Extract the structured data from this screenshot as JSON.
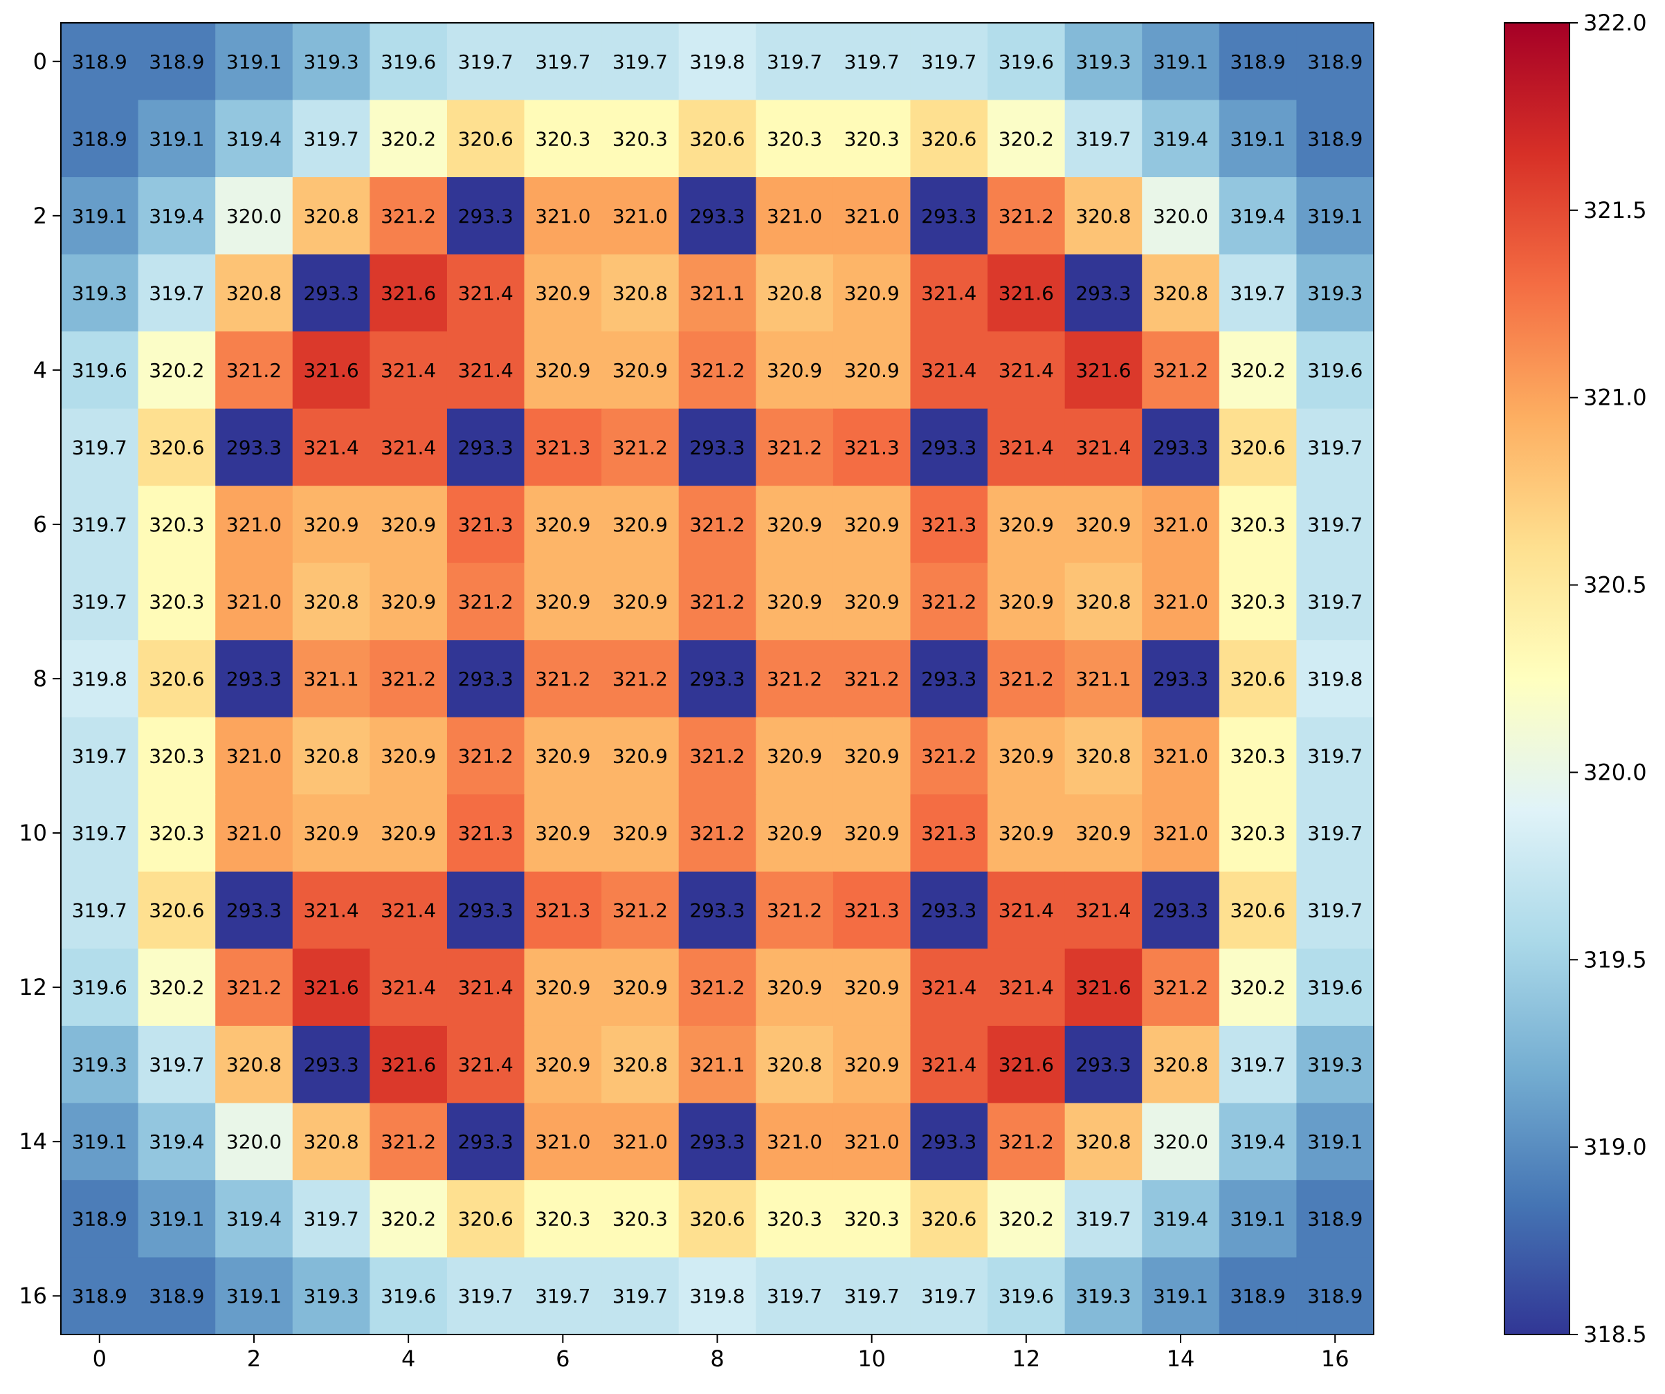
{
  "chart_data": {
    "type": "heatmap",
    "title": "",
    "xlabel": "",
    "ylabel": "",
    "x_ticks": [
      "0",
      "2",
      "4",
      "6",
      "8",
      "10",
      "12",
      "14",
      "16"
    ],
    "y_ticks": [
      "0",
      "2",
      "4",
      "6",
      "8",
      "10",
      "12",
      "14",
      "16"
    ],
    "colormap": "RdYlBu_r",
    "vmin": 318.5,
    "vmax": 322.0,
    "colorbar_ticks": [
      "322.0",
      "321.5",
      "321.0",
      "320.5",
      "320.0",
      "319.5",
      "319.0",
      "318.5"
    ],
    "matrix": [
      [
        "318.9",
        "318.9",
        "319.1",
        "319.3",
        "319.6",
        "319.7",
        "319.7",
        "319.7",
        "319.8",
        "319.7",
        "319.7",
        "319.7",
        "319.6",
        "319.3",
        "319.1",
        "318.9",
        "318.9"
      ],
      [
        "318.9",
        "319.1",
        "319.4",
        "319.7",
        "320.2",
        "320.6",
        "320.3",
        "320.3",
        "320.6",
        "320.3",
        "320.3",
        "320.6",
        "320.2",
        "319.7",
        "319.4",
        "319.1",
        "318.9"
      ],
      [
        "319.1",
        "319.4",
        "320.0",
        "320.8",
        "321.2",
        "293.3",
        "321.0",
        "321.0",
        "293.3",
        "321.0",
        "321.0",
        "293.3",
        "321.2",
        "320.8",
        "320.0",
        "319.4",
        "319.1"
      ],
      [
        "319.3",
        "319.7",
        "320.8",
        "293.3",
        "321.6",
        "321.4",
        "320.9",
        "320.8",
        "321.1",
        "320.8",
        "320.9",
        "321.4",
        "321.6",
        "293.3",
        "320.8",
        "319.7",
        "319.3"
      ],
      [
        "319.6",
        "320.2",
        "321.2",
        "321.6",
        "321.4",
        "321.4",
        "320.9",
        "320.9",
        "321.2",
        "320.9",
        "320.9",
        "321.4",
        "321.4",
        "321.6",
        "321.2",
        "320.2",
        "319.6"
      ],
      [
        "319.7",
        "320.6",
        "293.3",
        "321.4",
        "321.4",
        "293.3",
        "321.3",
        "321.2",
        "293.3",
        "321.2",
        "321.3",
        "293.3",
        "321.4",
        "321.4",
        "293.3",
        "320.6",
        "319.7"
      ],
      [
        "319.7",
        "320.3",
        "321.0",
        "320.9",
        "320.9",
        "321.3",
        "320.9",
        "320.9",
        "321.2",
        "320.9",
        "320.9",
        "321.3",
        "320.9",
        "320.9",
        "321.0",
        "320.3",
        "319.7"
      ],
      [
        "319.7",
        "320.3",
        "321.0",
        "320.8",
        "320.9",
        "321.2",
        "320.9",
        "320.9",
        "321.2",
        "320.9",
        "320.9",
        "321.2",
        "320.9",
        "320.8",
        "321.0",
        "320.3",
        "319.7"
      ],
      [
        "319.8",
        "320.6",
        "293.3",
        "321.1",
        "321.2",
        "293.3",
        "321.2",
        "321.2",
        "293.3",
        "321.2",
        "321.2",
        "293.3",
        "321.2",
        "321.1",
        "293.3",
        "320.6",
        "319.8"
      ],
      [
        "319.7",
        "320.3",
        "321.0",
        "320.8",
        "320.9",
        "321.2",
        "320.9",
        "320.9",
        "321.2",
        "320.9",
        "320.9",
        "321.2",
        "320.9",
        "320.8",
        "321.0",
        "320.3",
        "319.7"
      ],
      [
        "319.7",
        "320.3",
        "321.0",
        "320.9",
        "320.9",
        "321.3",
        "320.9",
        "320.9",
        "321.2",
        "320.9",
        "320.9",
        "321.3",
        "320.9",
        "320.9",
        "321.0",
        "320.3",
        "319.7"
      ],
      [
        "319.7",
        "320.6",
        "293.3",
        "321.4",
        "321.4",
        "293.3",
        "321.3",
        "321.2",
        "293.3",
        "321.2",
        "321.3",
        "293.3",
        "321.4",
        "321.4",
        "293.3",
        "320.6",
        "319.7"
      ],
      [
        "319.6",
        "320.2",
        "321.2",
        "321.6",
        "321.4",
        "321.4",
        "320.9",
        "320.9",
        "321.2",
        "320.9",
        "320.9",
        "321.4",
        "321.4",
        "321.6",
        "321.2",
        "320.2",
        "319.6"
      ],
      [
        "319.3",
        "319.7",
        "320.8",
        "293.3",
        "321.6",
        "321.4",
        "320.9",
        "320.8",
        "321.1",
        "320.8",
        "320.9",
        "321.4",
        "321.6",
        "293.3",
        "320.8",
        "319.7",
        "319.3"
      ],
      [
        "319.1",
        "319.4",
        "320.0",
        "320.8",
        "321.2",
        "293.3",
        "321.0",
        "321.0",
        "293.3",
        "321.0",
        "321.0",
        "293.3",
        "321.2",
        "320.8",
        "320.0",
        "319.4",
        "319.1"
      ],
      [
        "318.9",
        "319.1",
        "319.4",
        "319.7",
        "320.2",
        "320.6",
        "320.3",
        "320.3",
        "320.6",
        "320.3",
        "320.3",
        "320.6",
        "320.2",
        "319.7",
        "319.4",
        "319.1",
        "318.9"
      ],
      [
        "318.9",
        "318.9",
        "319.1",
        "319.3",
        "319.6",
        "319.7",
        "319.7",
        "319.7",
        "319.8",
        "319.7",
        "319.7",
        "319.7",
        "319.6",
        "319.3",
        "319.1",
        "318.9",
        "318.9"
      ]
    ]
  }
}
